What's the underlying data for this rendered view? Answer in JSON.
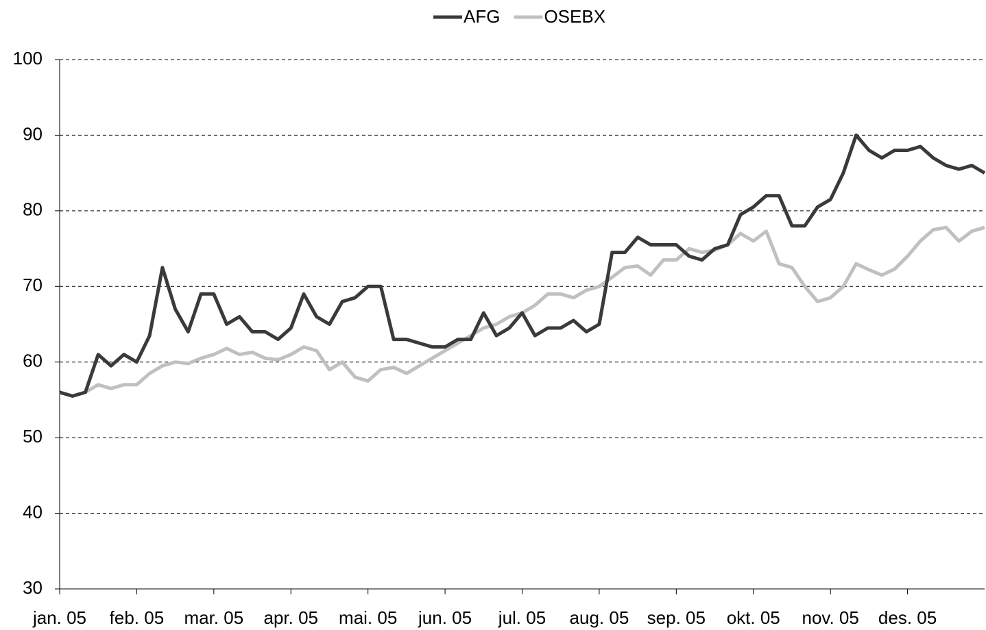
{
  "chart_data": {
    "type": "line",
    "categories": [
      "jan. 05",
      null,
      null,
      null,
      null,
      null,
      "feb. 05",
      null,
      null,
      null,
      null,
      null,
      "mar. 05",
      null,
      null,
      null,
      null,
      null,
      "apr. 05",
      null,
      null,
      null,
      null,
      null,
      "mai. 05",
      null,
      null,
      null,
      null,
      null,
      "jun. 05",
      null,
      null,
      null,
      null,
      null,
      "jul. 05",
      null,
      null,
      null,
      null,
      null,
      "aug. 05",
      null,
      null,
      null,
      null,
      null,
      "sep. 05",
      null,
      null,
      null,
      null,
      null,
      "okt. 05",
      null,
      null,
      null,
      null,
      null,
      "nov. 05",
      null,
      null,
      null,
      null,
      null,
      "des. 05",
      null,
      null,
      null,
      null,
      null,
      null
    ],
    "series": [
      {
        "name": "AFG",
        "color": "#3a3a3a",
        "values": [
          56,
          55.5,
          56,
          61,
          59.5,
          61,
          60,
          63.5,
          72.5,
          67,
          64,
          69,
          69,
          65,
          66,
          64,
          64,
          63,
          64.5,
          69,
          66,
          65,
          68,
          68.5,
          70,
          70,
          63,
          63,
          62.5,
          62,
          62,
          63,
          63,
          66.5,
          63.5,
          64.5,
          66.5,
          63.5,
          64.5,
          64.5,
          65.5,
          64,
          65,
          74.5,
          74.5,
          76.5,
          75.5,
          75.5,
          75.5,
          74,
          73.5,
          75,
          75.5,
          79.5,
          80.5,
          82,
          82,
          78,
          78,
          80.5,
          81.5,
          85,
          90,
          88,
          87,
          88,
          88,
          88.5,
          87,
          86,
          85.5,
          86,
          85
        ]
      },
      {
        "name": "OSEBX",
        "color": "#c0c0c0",
        "values": [
          56,
          55.5,
          56,
          57,
          56.5,
          57,
          57,
          58.5,
          59.5,
          60,
          59.8,
          60.5,
          61,
          61.8,
          61,
          61.3,
          60.5,
          60.3,
          61,
          62,
          61.5,
          59,
          60,
          58,
          57.5,
          59,
          59.3,
          58.5,
          59.5,
          60.5,
          61.5,
          62.5,
          63.5,
          64.5,
          65,
          66,
          66.5,
          67.5,
          69,
          69,
          68.5,
          69.5,
          70,
          71.2,
          72.5,
          72.7,
          71.5,
          73.5,
          73.5,
          75,
          74.5,
          74.8,
          75.5,
          77,
          76,
          77.3,
          73,
          72.5,
          70,
          68,
          68.5,
          70,
          73,
          72.2,
          71.5,
          72.3,
          74,
          76,
          77.5,
          77.8,
          76,
          77.3,
          77.8
        ]
      }
    ],
    "ylim": [
      30,
      100
    ],
    "yticks": [
      30,
      40,
      50,
      60,
      70,
      80,
      90,
      100
    ],
    "grid": true,
    "legend": "top"
  }
}
